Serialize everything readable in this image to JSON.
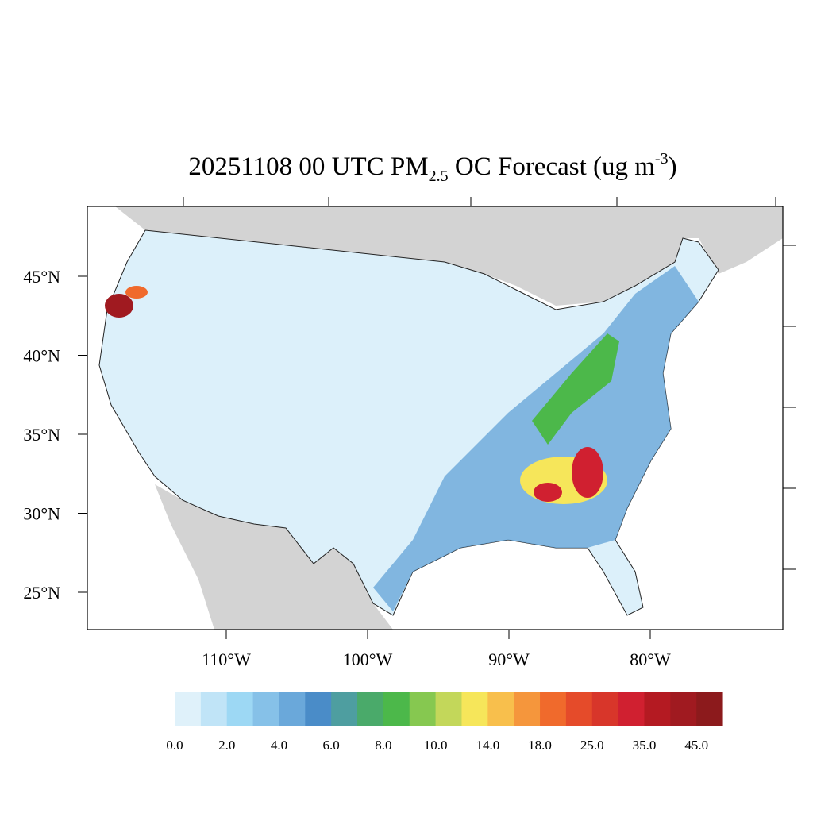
{
  "map": {
    "title": {
      "main": "20251108 00 UTC PM",
      "sub": "2.5",
      "mid": " OC Forecast (ug m",
      "sup": "-3",
      "end": ")"
    },
    "lat_ticks": [
      {
        "value": 45,
        "label": "45°N"
      },
      {
        "value": 40,
        "label": "40°N"
      },
      {
        "value": 35,
        "label": "35°N"
      },
      {
        "value": 30,
        "label": "30°N"
      },
      {
        "value": 25,
        "label": "25°N"
      }
    ],
    "lon_ticks": [
      {
        "value": -110,
        "label": "110°W"
      },
      {
        "value": -100,
        "label": "100°W"
      },
      {
        "value": -90,
        "label": "90°W"
      },
      {
        "value": -80,
        "label": "80°W"
      }
    ],
    "colorbar": {
      "colors": [
        "#dff1fa",
        "#c0e4f7",
        "#9dd8f4",
        "#86c1e8",
        "#6aa8da",
        "#4a8cc8",
        "#4e9ea0",
        "#4aaa6a",
        "#4cb84a",
        "#86c850",
        "#c3d75a",
        "#f6e65a",
        "#f8bf4c",
        "#f5963c",
        "#f06a2c",
        "#e54b2a",
        "#d8362a",
        "#d02030",
        "#b41a22",
        "#a01a20",
        "#8c1a1c"
      ],
      "labels": [
        {
          "value": 0,
          "label": "0.0"
        },
        {
          "value": 2,
          "label": "2.0"
        },
        {
          "value": 4,
          "label": "4.0"
        },
        {
          "value": 6,
          "label": "6.0"
        },
        {
          "value": 8,
          "label": "8.0"
        },
        {
          "value": 10,
          "label": "10.0"
        },
        {
          "value": 14,
          "label": "14.0"
        },
        {
          "value": 18,
          "label": "18.0"
        },
        {
          "value": 25,
          "label": "25.0"
        },
        {
          "value": 35,
          "label": "35.0"
        },
        {
          "value": 45,
          "label": "45.0"
        }
      ]
    }
  }
}
